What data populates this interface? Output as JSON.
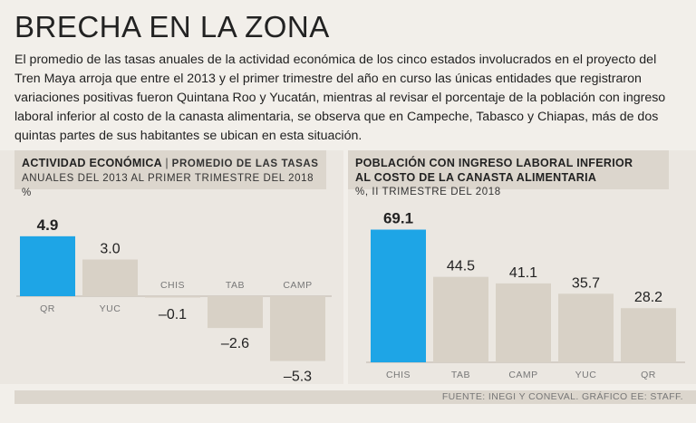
{
  "title": "BRECHA EN LA ZONA",
  "intro": "El promedio de las tasas anuales de la actividad económica de los cinco estados involucrados en el proyecto del Tren Maya arroja que entre el 2013 y el primer trimestre del año en curso las únicas entidades que registraron variaciones positivas fueron Quintana Roo y Yucatán, mientras al revisar el porcentaje de la población con ingreso laboral inferior al costo de la canasta alimentaria, se observa que en Campeche, Tabasco y Chiapas, más de dos quintas partes de sus habitantes se ubican en esta situación.",
  "left_panel": {
    "title": "ACTIVIDAD ECONÓMICA",
    "separator": "|",
    "subtitle_a": "PROMEDIO DE LAS TASAS",
    "subtitle_b": "ANUALES DEL 2013 AL PRIMER TRIMESTRE DEL 2018 %"
  },
  "right_panel": {
    "title_a": "POBLACIÓN CON INGRESO LABORAL INFERIOR",
    "title_b": "AL COSTO DE LA CANASTA ALIMENTARIA",
    "subtitle": "%, II TRIMESTRE DEL 2018"
  },
  "source": "FUENTE: INEGI Y CONEVAL. GRÁFICO EE: STAFF.",
  "colors": {
    "highlight": "#1ea5e6",
    "bar": "#d8d1c6",
    "background": "#f2efea",
    "panel": "#ebe7e1"
  },
  "chart_data": [
    {
      "type": "bar",
      "title": "ACTIVIDAD ECONÓMICA",
      "categories": [
        "QR",
        "YUC",
        "CHIS",
        "TAB",
        "CAMP"
      ],
      "values": [
        4.9,
        3.0,
        -0.1,
        -2.6,
        -5.3
      ],
      "labels": [
        "4.9",
        "3.0",
        "–0.1",
        "–2.6",
        "–5.3"
      ],
      "highlight_index": 0,
      "ylim": [
        -5.3,
        4.9
      ]
    },
    {
      "type": "bar",
      "title": "POBLACIÓN CON INGRESO LABORAL INFERIOR AL COSTO DE LA CANASTA ALIMENTARIA",
      "categories": [
        "CHIS",
        "TAB",
        "CAMP",
        "YUC",
        "QR"
      ],
      "values": [
        69.1,
        44.5,
        41.1,
        35.7,
        28.2
      ],
      "labels": [
        "69.1",
        "44.5",
        "41.1",
        "35.7",
        "28.2"
      ],
      "highlight_index": 0,
      "ylim": [
        0,
        69.1
      ]
    }
  ]
}
